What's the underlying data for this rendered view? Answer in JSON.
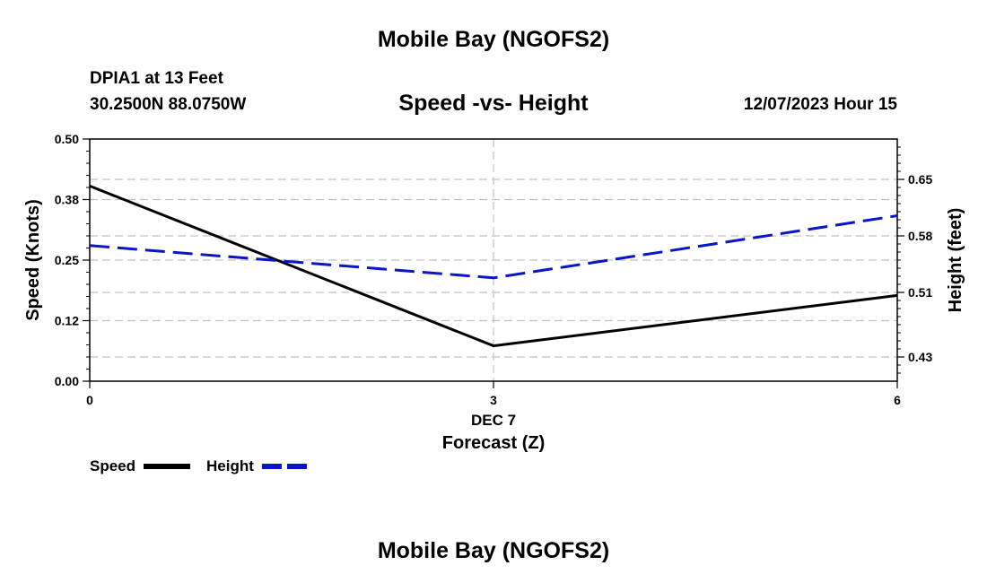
{
  "header": {
    "title": "Mobile Bay (NGOFS2)",
    "station": "DPIA1 at 13 Feet",
    "coords": "30.2500N  88.0750W",
    "plot_title": "Speed -vs- Height",
    "datetime": "12/07/2023 Hour 15"
  },
  "footer": {
    "title": "Mobile Bay (NGOFS2)"
  },
  "colors": {
    "speed": "#000000",
    "height": "#0a14c8",
    "grid": "#c0c0c0"
  },
  "chart_data": {
    "type": "line",
    "x": [
      0,
      3,
      6
    ],
    "xlim": [
      0,
      6
    ],
    "x_ticks": [
      {
        "value": 0,
        "label": "0"
      },
      {
        "value": 3,
        "label": "3"
      },
      {
        "value": 6,
        "label": "6"
      }
    ],
    "x_date_label": "DEC 7",
    "xlabel": "Forecast (Z)",
    "ylabel_left": "Speed (Knots)",
    "ylabel_right": "Height (feet)",
    "ylim_left": [
      0.0,
      0.5
    ],
    "ylim_right": [
      0.4,
      0.7
    ],
    "left_ticks": [
      {
        "value": 0.0,
        "label": "0.00"
      },
      {
        "value": 0.125,
        "label": "0.12"
      },
      {
        "value": 0.25,
        "label": "0.25"
      },
      {
        "value": 0.375,
        "label": "0.38"
      },
      {
        "value": 0.5,
        "label": "0.50"
      }
    ],
    "right_ticks": [
      {
        "value": 0.43,
        "label": "0.43"
      },
      {
        "value": 0.51,
        "label": "0.51"
      },
      {
        "value": 0.58,
        "label": "0.58"
      },
      {
        "value": 0.65,
        "label": "0.65"
      }
    ],
    "series": [
      {
        "name": "Speed",
        "axis": "left",
        "style": "solid",
        "values": [
          0.403,
          0.073,
          0.177
        ]
      },
      {
        "name": "Height",
        "axis": "right",
        "style": "dashed",
        "values": [
          0.568,
          0.528,
          0.605
        ]
      }
    ],
    "legend": {
      "position": "bottom-left",
      "entries": [
        "Speed",
        "Height"
      ]
    }
  }
}
